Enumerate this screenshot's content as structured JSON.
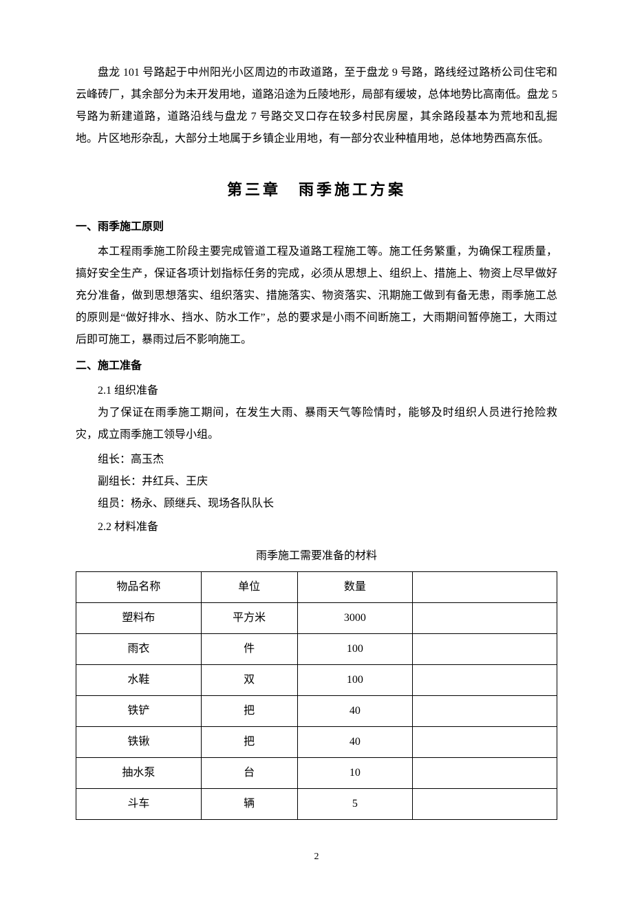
{
  "intro_paragraph": "盘龙 101 号路起于中州阳光小区周边的市政道路，至于盘龙 9 号路，路线经过路桥公司住宅和云峰砖厂，其余部分为未开发用地，道路沿途为丘陵地形，局部有缓坡，总体地势比高南低。盘龙 5 号路为新建道路，道路沿线与盘龙 7 号路交叉口存在较多村民房屋，其余路段基本为荒地和乱掘地。片区地形杂乱，大部分土地属于乡镇企业用地，有一部分农业种植用地，总体地势西高东低。",
  "chapter_title": "第三章　雨季施工方案",
  "section1": {
    "heading": "一、雨季施工原则",
    "body": "本工程雨季施工阶段主要完成管道工程及道路工程施工等。施工任务繁重，为确保工程质量，搞好安全生产，保证各项计划指标任务的完成，必须从思想上、组织上、措施上、物资上尽早做好充分准备，做到思想落实、组织落实、措施落实、物资落实、汛期施工做到有备无患，雨季施工总的原则是“做好排水、挡水、防水工作”，总的要求是小雨不间断施工，大雨期间暂停施工，大雨过后即可施工，暴雨过后不影响施工。"
  },
  "section2": {
    "heading": "二、施工准备",
    "sub21_label": "2.1 组织准备",
    "sub21_body": "为了保证在雨季施工期间，在发生大雨、暴雨天气等险情时，能够及时组织人员进行抢险救灾，成立雨季施工领导小组。",
    "leader_line": "组长：高玉杰",
    "deputy_line": "副组长：井红兵、王庆",
    "member_line": "组员：杨永、顾继兵、现场各队队长",
    "sub22_label": "2.2 材料准备"
  },
  "materials_table": {
    "caption": "雨季施工需要准备的材料",
    "columns": [
      "物品名称",
      "单位",
      "数量",
      ""
    ],
    "rows": [
      [
        "塑料布",
        "平方米",
        "3000",
        ""
      ],
      [
        "雨衣",
        "件",
        "100",
        ""
      ],
      [
        "水鞋",
        "双",
        "100",
        ""
      ],
      [
        "铁铲",
        "把",
        "40",
        ""
      ],
      [
        "铁锹",
        "把",
        "40",
        ""
      ],
      [
        "抽水泵",
        "台",
        "10",
        ""
      ],
      [
        "斗车",
        "辆",
        "5",
        ""
      ]
    ],
    "col_widths": [
      "26%",
      "20%",
      "24%",
      "30%"
    ]
  },
  "page_number": "2",
  "style": {
    "body_font_family": "SimSun",
    "body_font_size": 16,
    "chapter_title_font_size": 22,
    "text_color": "#000000",
    "background_color": "#ffffff",
    "table_border_color": "#000000",
    "line_height": 2.0
  }
}
